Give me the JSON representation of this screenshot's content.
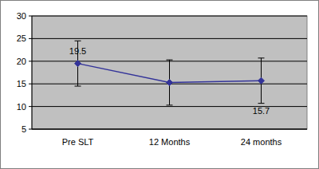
{
  "chart_data": {
    "type": "line",
    "categories": [
      "Pre SLT",
      "12 Months",
      "24 months"
    ],
    "values": [
      19.5,
      15.3,
      15.7
    ],
    "errors": [
      5,
      5,
      5
    ],
    "value_labels": [
      "19.5",
      null,
      "15.7"
    ],
    "data_labels": true,
    "color": "#333399",
    "marker": "diamond",
    "ylim": [
      5,
      30
    ],
    "yticks": [
      5,
      10,
      15,
      20,
      25,
      30
    ],
    "grid": true
  }
}
